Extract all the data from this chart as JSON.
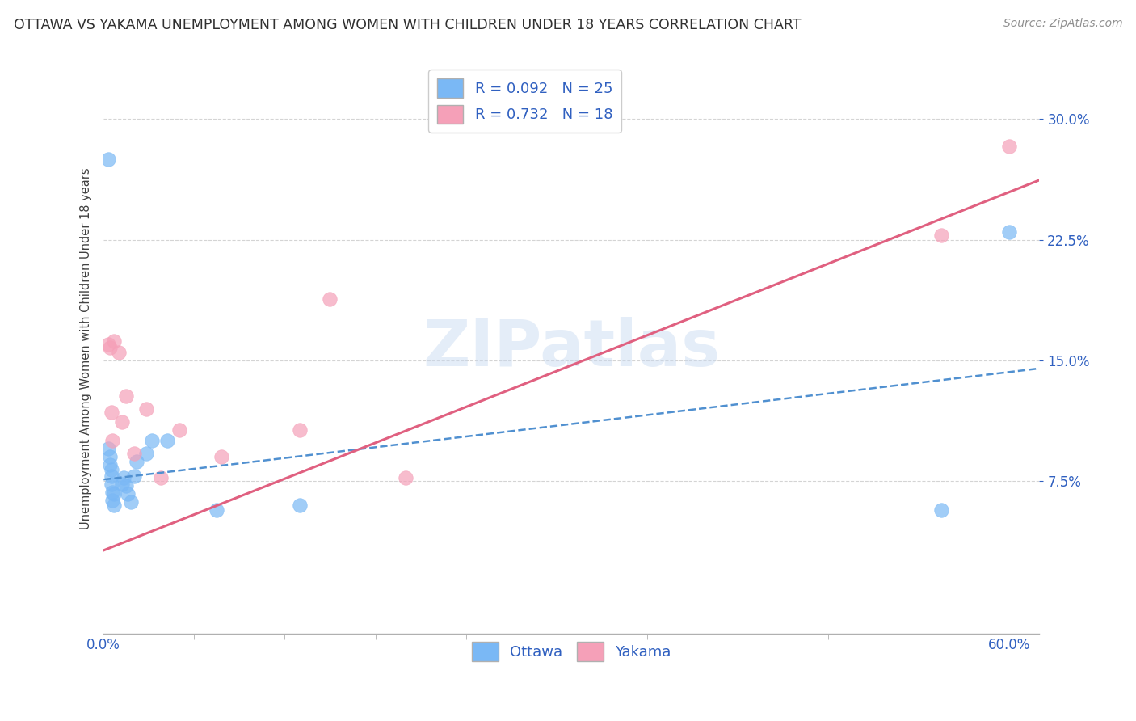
{
  "title": "OTTAWA VS YAKAMA UNEMPLOYMENT AMONG WOMEN WITH CHILDREN UNDER 18 YEARS CORRELATION CHART",
  "source": "Source: ZipAtlas.com",
  "ylabel": "Unemployment Among Women with Children Under 18 years",
  "xlim": [
    0,
    0.62
  ],
  "ylim": [
    -0.02,
    0.335
  ],
  "yticks": [
    0.075,
    0.15,
    0.225,
    0.3
  ],
  "xticks": [
    0.0,
    0.6
  ],
  "watermark": "ZIPatlas",
  "legend_label_ottawa": "R = 0.092   N = 25",
  "legend_label_yakama": "R = 0.732   N = 18",
  "ottawa_color": "#7ab8f5",
  "yakama_color": "#f5a0b8",
  "ottawa_scatter": [
    [
      0.003,
      0.275
    ],
    [
      0.003,
      0.095
    ],
    [
      0.004,
      0.09
    ],
    [
      0.004,
      0.085
    ],
    [
      0.005,
      0.082
    ],
    [
      0.005,
      0.078
    ],
    [
      0.005,
      0.073
    ],
    [
      0.006,
      0.068
    ],
    [
      0.006,
      0.063
    ],
    [
      0.007,
      0.06
    ],
    [
      0.007,
      0.067
    ],
    [
      0.012,
      0.073
    ],
    [
      0.013,
      0.077
    ],
    [
      0.015,
      0.072
    ],
    [
      0.016,
      0.067
    ],
    [
      0.018,
      0.062
    ],
    [
      0.02,
      0.078
    ],
    [
      0.022,
      0.087
    ],
    [
      0.028,
      0.092
    ],
    [
      0.032,
      0.1
    ],
    [
      0.042,
      0.1
    ],
    [
      0.075,
      0.057
    ],
    [
      0.13,
      0.06
    ],
    [
      0.555,
      0.057
    ],
    [
      0.6,
      0.23
    ]
  ],
  "yakama_scatter": [
    [
      0.003,
      0.16
    ],
    [
      0.004,
      0.158
    ],
    [
      0.005,
      0.118
    ],
    [
      0.006,
      0.1
    ],
    [
      0.007,
      0.162
    ],
    [
      0.01,
      0.155
    ],
    [
      0.012,
      0.112
    ],
    [
      0.015,
      0.128
    ],
    [
      0.02,
      0.092
    ],
    [
      0.028,
      0.12
    ],
    [
      0.038,
      0.077
    ],
    [
      0.05,
      0.107
    ],
    [
      0.078,
      0.09
    ],
    [
      0.13,
      0.107
    ],
    [
      0.15,
      0.188
    ],
    [
      0.2,
      0.077
    ],
    [
      0.555,
      0.228
    ],
    [
      0.6,
      0.283
    ]
  ],
  "ottawa_trendline_x": [
    0.0,
    0.62
  ],
  "ottawa_trendline_y": [
    0.076,
    0.145
  ],
  "yakama_trendline_x": [
    0.0,
    0.62
  ],
  "yakama_trendline_y": [
    0.032,
    0.262
  ],
  "background_color": "#ffffff",
  "grid_color": "#d0d0d0",
  "title_color": "#303030",
  "axis_label_color": "#3060c0",
  "tick_color": "#3060c0",
  "title_fontsize": 12.5,
  "source_fontsize": 10,
  "legend_fontsize": 13,
  "tick_fontsize": 12
}
